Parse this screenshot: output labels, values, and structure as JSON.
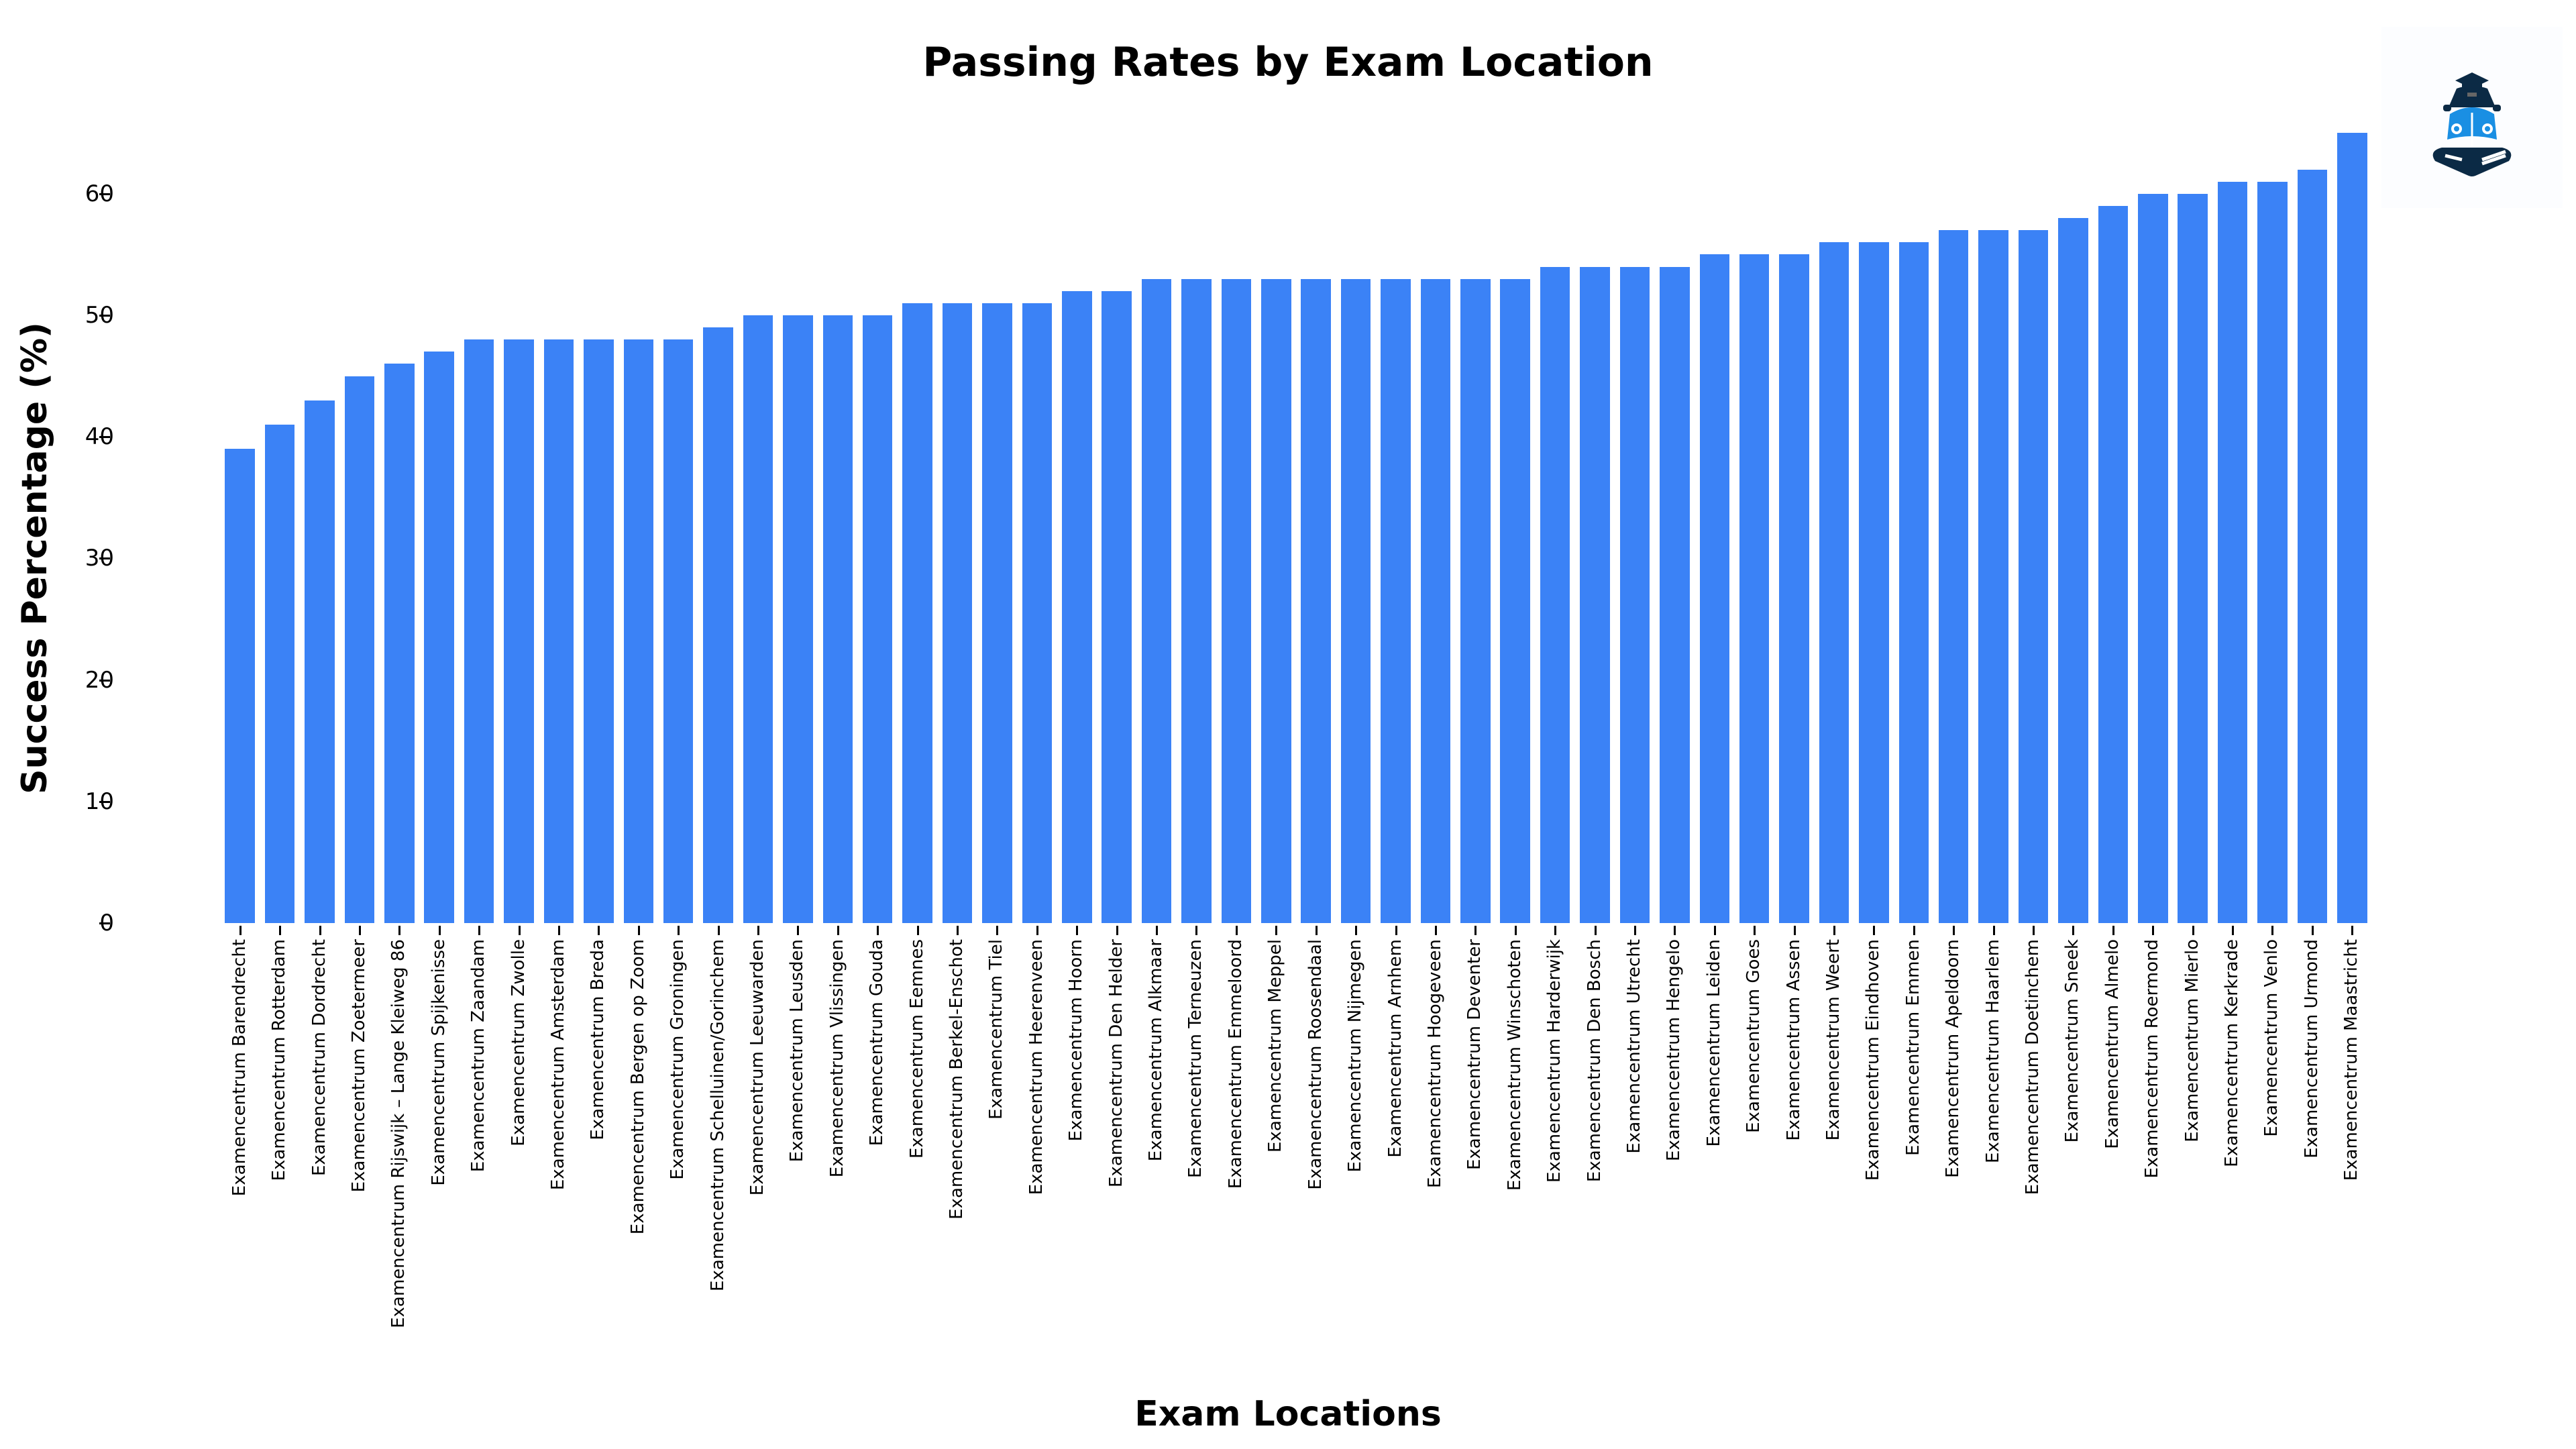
{
  "chart_data": {
    "type": "bar",
    "title": "Passing Rates by Exam Location",
    "xlabel": "Exam Locations",
    "ylabel": "Success Percentage (%)",
    "ylim": [
      0,
      66
    ],
    "yticks": [
      0,
      10,
      20,
      30,
      40,
      50,
      60
    ],
    "grid": false,
    "legend": null,
    "bar_color": "#3b82f6",
    "categories": [
      "Examencentrum Barendrecht",
      "Examencentrum Rotterdam",
      "Examencentrum Dordrecht",
      "Examencentrum Zoetermeer",
      "Examencentrum Rijswijk – Lange Kleiweg 86",
      "Examencentrum Spijkenisse",
      "Examencentrum Zaandam",
      "Examencentrum Zwolle",
      "Examencentrum Amsterdam",
      "Examencentrum Breda",
      "Examencentrum Bergen op Zoom",
      "Examencentrum Groningen",
      "Examencentrum Schelluinen/Gorinchem",
      "Examencentrum Leeuwarden",
      "Examencentrum Leusden",
      "Examencentrum Vlissingen",
      "Examencentrum Gouda",
      "Examencentrum Eemnes",
      "Examencentrum Berkel-Enschot",
      "Examencentrum Tiel",
      "Examencentrum Heerenveen",
      "Examencentrum Hoorn",
      "Examencentrum Den Helder",
      "Examencentrum Alkmaar",
      "Examencentrum Terneuzen",
      "Examencentrum Emmeloord",
      "Examencentrum Meppel",
      "Examencentrum Roosendaal",
      "Examencentrum Nijmegen",
      "Examencentrum Arnhem",
      "Examencentrum Hoogeveen",
      "Examencentrum Deventer",
      "Examencentrum Winschoten",
      "Examencentrum Harderwijk",
      "Examencentrum Den Bosch",
      "Examencentrum Utrecht",
      "Examencentrum Hengelo",
      "Examencentrum Leiden",
      "Examencentrum Goes",
      "Examencentrum Assen",
      "Examencentrum Weert",
      "Examencentrum Eindhoven",
      "Examencentrum Emmen",
      "Examencentrum Apeldoorn",
      "Examencentrum Haarlem",
      "Examencentrum Doetinchem",
      "Examencentrum Sneek",
      "Examencentrum Almelo",
      "Examencentrum Roermond",
      "Examencentrum Mierlo",
      "Examencentrum Kerkrade",
      "Examencentrum Venlo",
      "Examencentrum Urmond",
      "Examencentrum Maastricht"
    ],
    "values": [
      39,
      41,
      43,
      45,
      46,
      47,
      48,
      48,
      48,
      48,
      48,
      48,
      49,
      50,
      50,
      50,
      50,
      51,
      51,
      51,
      51,
      52,
      52,
      53,
      53,
      53,
      53,
      53,
      53,
      53,
      53,
      53,
      53,
      54,
      54,
      54,
      54,
      55,
      55,
      55,
      56,
      56,
      56,
      57,
      57,
      57,
      58,
      59,
      60,
      60,
      61,
      61,
      62,
      65
    ]
  },
  "logo": {
    "icon": "driving-school-book-car-graduation-cap-icon"
  }
}
